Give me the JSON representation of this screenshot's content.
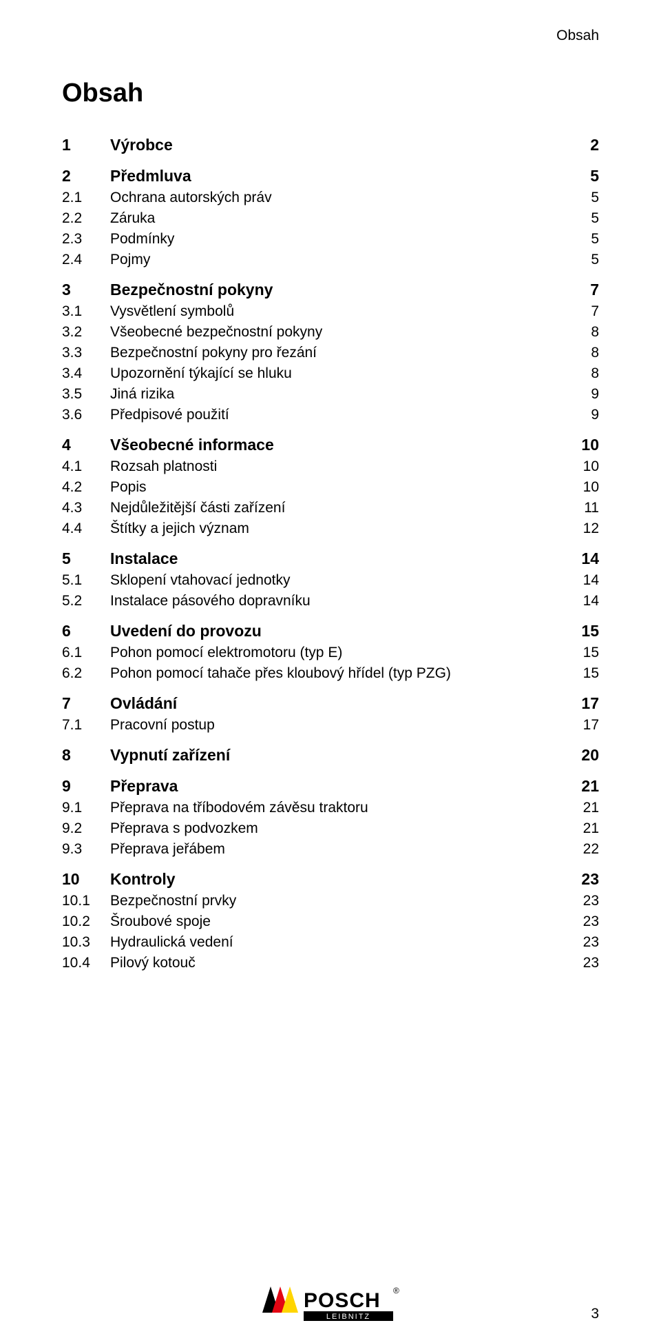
{
  "header": {
    "section_label": "Obsah"
  },
  "title": "Obsah",
  "footer": {
    "page_number": "3",
    "logo": {
      "brand": "POSCH",
      "subtitle": "LEIBNITZ",
      "stripe_colors": [
        "#000000",
        "#e30613",
        "#ffd500"
      ],
      "reg_mark": "®"
    }
  },
  "toc": [
    {
      "level": 1,
      "num": "1",
      "title": "Výrobce",
      "page": "2"
    },
    {
      "level": 1,
      "num": "2",
      "title": "Předmluva",
      "page": "5"
    },
    {
      "level": 2,
      "num": "2.1",
      "title": "Ochrana autorských práv",
      "page": "5"
    },
    {
      "level": 2,
      "num": "2.2",
      "title": "Záruka",
      "page": "5"
    },
    {
      "level": 2,
      "num": "2.3",
      "title": "Podmínky",
      "page": "5"
    },
    {
      "level": 2,
      "num": "2.4",
      "title": "Pojmy",
      "page": "5"
    },
    {
      "level": 1,
      "num": "3",
      "title": "Bezpečnostní pokyny",
      "page": "7"
    },
    {
      "level": 2,
      "num": "3.1",
      "title": "Vysvětlení symbolů",
      "page": "7"
    },
    {
      "level": 2,
      "num": "3.2",
      "title": "Všeobecné bezpečnostní pokyny",
      "page": "8"
    },
    {
      "level": 2,
      "num": "3.3",
      "title": "Bezpečnostní pokyny pro řezání",
      "page": "8"
    },
    {
      "level": 2,
      "num": "3.4",
      "title": "Upozornění týkající se hluku",
      "page": "8"
    },
    {
      "level": 2,
      "num": "3.5",
      "title": "Jiná rizika",
      "page": "9"
    },
    {
      "level": 2,
      "num": "3.6",
      "title": "Předpisové použití",
      "page": "9"
    },
    {
      "level": 1,
      "num": "4",
      "title": "Všeobecné informace",
      "page": "10"
    },
    {
      "level": 2,
      "num": "4.1",
      "title": "Rozsah platnosti",
      "page": "10"
    },
    {
      "level": 2,
      "num": "4.2",
      "title": "Popis",
      "page": "10"
    },
    {
      "level": 2,
      "num": "4.3",
      "title": "Nejdůležitější části zařízení",
      "page": "11"
    },
    {
      "level": 2,
      "num": "4.4",
      "title": "Štítky a jejich význam",
      "page": "12"
    },
    {
      "level": 1,
      "num": "5",
      "title": "Instalace",
      "page": "14"
    },
    {
      "level": 2,
      "num": "5.1",
      "title": "Sklopení vtahovací jednotky",
      "page": "14"
    },
    {
      "level": 2,
      "num": "5.2",
      "title": "Instalace pásového dopravníku",
      "page": "14"
    },
    {
      "level": 1,
      "num": "6",
      "title": "Uvedení do provozu",
      "page": "15"
    },
    {
      "level": 2,
      "num": "6.1",
      "title": "Pohon pomocí elektromotoru (typ E)",
      "page": "15"
    },
    {
      "level": 2,
      "num": "6.2",
      "title": "Pohon pomocí tahače přes kloubový hřídel (typ PZG)",
      "page": "15"
    },
    {
      "level": 1,
      "num": "7",
      "title": "Ovládání",
      "page": "17"
    },
    {
      "level": 2,
      "num": "7.1",
      "title": "Pracovní postup",
      "page": "17"
    },
    {
      "level": 1,
      "num": "8",
      "title": "Vypnutí zařízení",
      "page": "20"
    },
    {
      "level": 1,
      "num": "9",
      "title": "Přeprava",
      "page": "21"
    },
    {
      "level": 2,
      "num": "9.1",
      "title": "Přeprava na tříbodovém závěsu traktoru",
      "page": "21"
    },
    {
      "level": 2,
      "num": "9.2",
      "title": "Přeprava s podvozkem",
      "page": "21"
    },
    {
      "level": 2,
      "num": "9.3",
      "title": "Přeprava jeřábem",
      "page": "22"
    },
    {
      "level": 1,
      "num": "10",
      "title": "Kontroly",
      "page": "23"
    },
    {
      "level": 2,
      "num": "10.1",
      "title": "Bezpečnostní prvky",
      "page": "23"
    },
    {
      "level": 2,
      "num": "10.2",
      "title": "Šroubové spoje",
      "page": "23"
    },
    {
      "level": 2,
      "num": "10.3",
      "title": "Hydraulická vedení",
      "page": "23"
    },
    {
      "level": 2,
      "num": "10.4",
      "title": "Pilový kotouč",
      "page": "23"
    }
  ],
  "styles": {
    "font_family": "Arial",
    "body_fontsize_pt": 16,
    "title_fontsize_pt": 28,
    "text_color": "#000000",
    "background_color": "#ffffff"
  }
}
